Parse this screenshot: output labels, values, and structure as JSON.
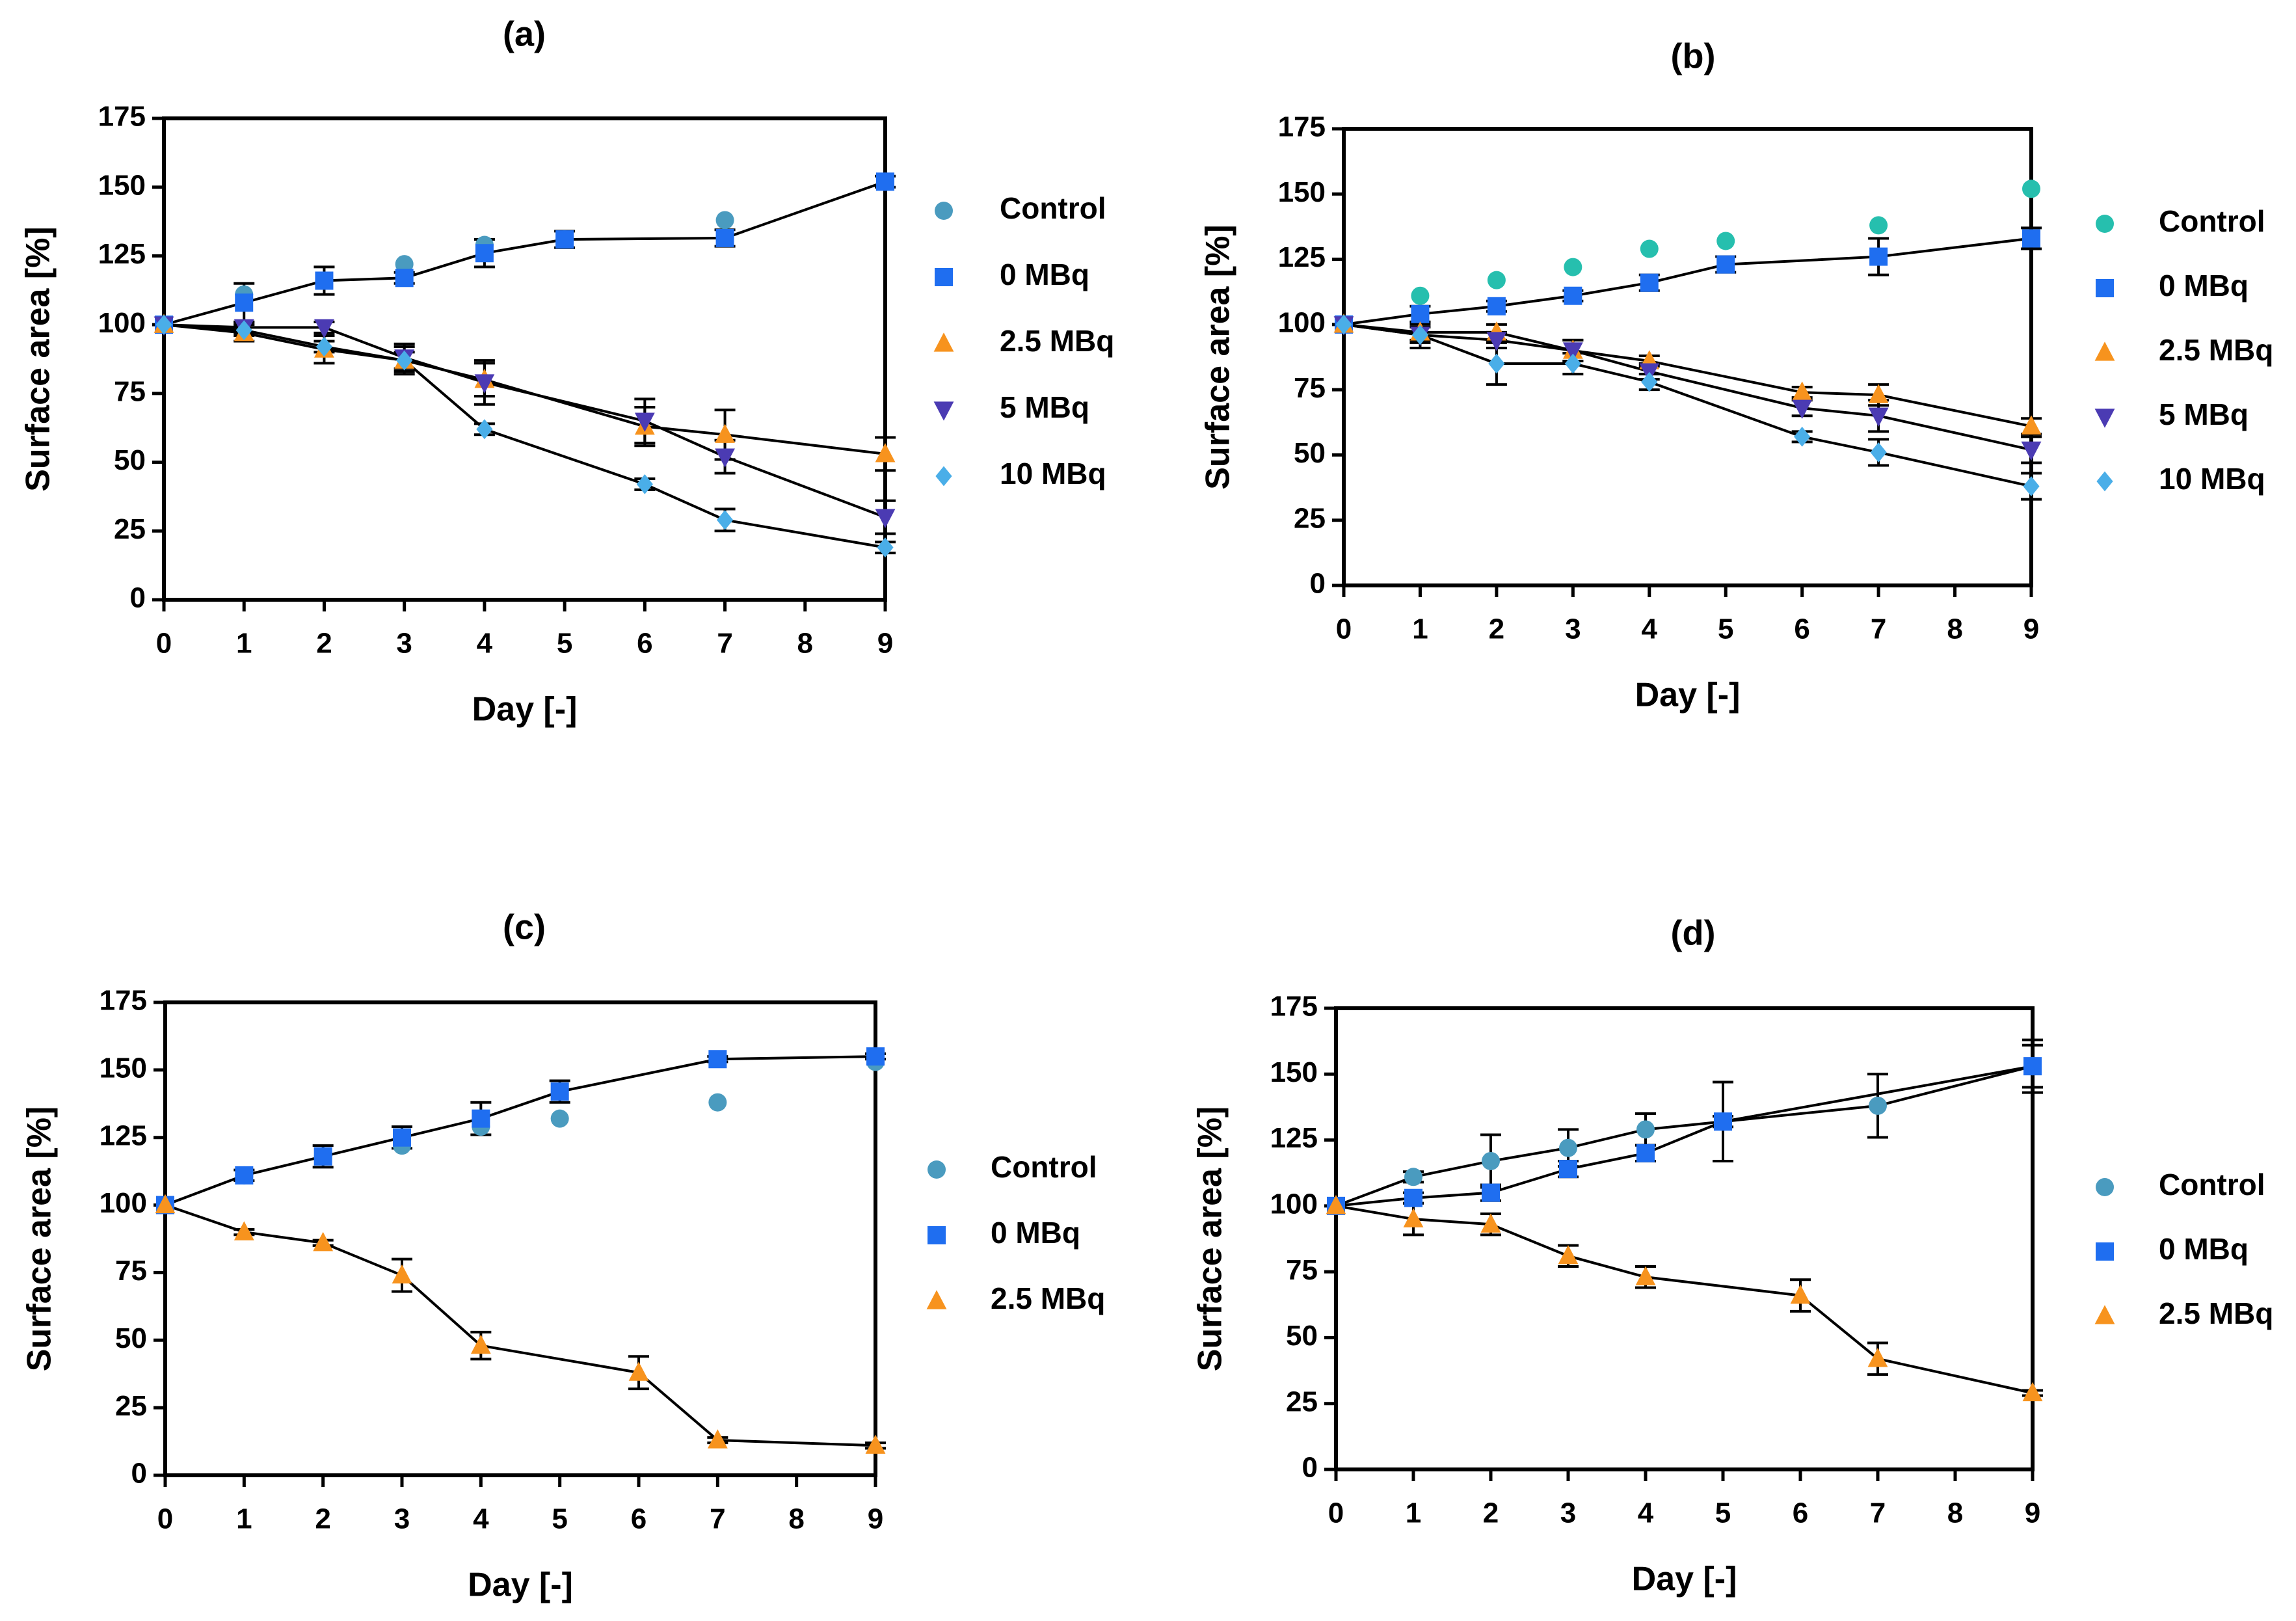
{
  "chart_data": [
    {
      "type": "line",
      "title": "(a)",
      "xlabel": "Day [-]",
      "ylabel": "Surface area [%]",
      "xlim": [
        0,
        9
      ],
      "xticks": [
        0,
        1,
        2,
        3,
        4,
        5,
        6,
        7,
        8,
        9
      ],
      "ylim": [
        0,
        175
      ],
      "yticks": [
        0,
        25,
        50,
        75,
        100,
        125,
        150,
        175
      ],
      "series": [
        {
          "name": "Control",
          "color": "#4a9bbf",
          "marker": "circle",
          "line": false,
          "x": [
            0,
            1,
            2,
            3,
            4,
            5,
            7,
            9
          ],
          "values": [
            100,
            111,
            116,
            122,
            129,
            131,
            138,
            152
          ],
          "errors": [
            null,
            null,
            null,
            null,
            null,
            null,
            null,
            null
          ]
        },
        {
          "name": "0 MBq",
          "color": "#1f6ef0",
          "marker": "square",
          "line": true,
          "x": [
            0,
            1,
            2,
            3,
            4,
            5,
            7,
            9
          ],
          "values": [
            100,
            108,
            116,
            117,
            126,
            131,
            131.5,
            152
          ],
          "errors": [
            null,
            7,
            5,
            2,
            5,
            3,
            3,
            2
          ]
        },
        {
          "name": "2.5 MBq",
          "color": "#f7931e",
          "marker": "triangle-up",
          "line": true,
          "x": [
            0,
            1,
            2,
            3,
            4,
            6,
            7,
            9
          ],
          "values": [
            100,
            97,
            91,
            87,
            80,
            63,
            60,
            53
          ],
          "errors": [
            null,
            3,
            5,
            5,
            6,
            7,
            9,
            6
          ]
        },
        {
          "name": "5 MBq",
          "color": "#4b3bb3",
          "marker": "triangle-down",
          "line": true,
          "x": [
            0,
            1,
            2,
            3,
            4,
            6,
            7,
            9
          ],
          "values": [
            100,
            99,
            99,
            88,
            79,
            65,
            52,
            30
          ],
          "errors": [
            null,
            2,
            2,
            5,
            8,
            8,
            6,
            6
          ]
        },
        {
          "name": "10 MBq",
          "color": "#4aaee8",
          "marker": "diamond",
          "line": true,
          "x": [
            0,
            1,
            2,
            3,
            4,
            6,
            7,
            9
          ],
          "values": [
            100,
            98,
            92,
            87,
            62,
            42,
            29,
            19
          ],
          "errors": [
            null,
            2,
            2,
            3,
            2,
            2,
            4,
            2
          ]
        }
      ]
    },
    {
      "type": "line",
      "title": "(b)",
      "xlabel": "Day [-]",
      "ylabel": "Surface area [%]",
      "xlim": [
        0,
        9
      ],
      "xticks": [
        0,
        1,
        2,
        3,
        4,
        5,
        6,
        7,
        8,
        9
      ],
      "ylim": [
        0,
        175
      ],
      "yticks": [
        0,
        25,
        50,
        75,
        100,
        125,
        150,
        175
      ],
      "series": [
        {
          "name": "Control",
          "color": "#26bfae",
          "marker": "circle",
          "line": false,
          "x": [
            0,
            1,
            2,
            3,
            4,
            5,
            7,
            9
          ],
          "values": [
            100,
            111,
            117,
            122,
            129,
            132,
            138,
            152
          ],
          "errors": [
            null,
            null,
            null,
            null,
            null,
            null,
            null,
            null
          ]
        },
        {
          "name": "0 MBq",
          "color": "#1f6ef0",
          "marker": "square",
          "line": true,
          "x": [
            0,
            1,
            2,
            3,
            4,
            5,
            7,
            9
          ],
          "values": [
            100,
            104,
            107,
            111,
            116,
            123,
            126,
            133
          ],
          "errors": [
            null,
            3,
            2,
            2,
            3,
            3,
            7,
            4
          ]
        },
        {
          "name": "2.5 MBq",
          "color": "#f7931e",
          "marker": "triangle-up",
          "line": true,
          "x": [
            0,
            1,
            2,
            3,
            4,
            6,
            7,
            9
          ],
          "values": [
            100,
            97,
            97,
            90,
            86,
            74,
            73,
            61
          ],
          "errors": [
            null,
            3,
            3,
            4,
            2,
            2,
            4,
            3
          ]
        },
        {
          "name": "5 MBq",
          "color": "#4b3bb3",
          "marker": "triangle-down",
          "line": true,
          "x": [
            0,
            1,
            2,
            3,
            4,
            6,
            7,
            9
          ],
          "values": [
            100,
            96,
            94,
            90,
            82,
            68,
            65,
            52
          ],
          "errors": [
            null,
            3,
            3,
            4,
            3,
            3,
            6,
            5
          ]
        },
        {
          "name": "10 MBq",
          "color": "#4aaee8",
          "marker": "diamond",
          "line": true,
          "x": [
            0,
            1,
            2,
            3,
            4,
            6,
            7,
            9
          ],
          "values": [
            100,
            96,
            85,
            85,
            78,
            57,
            51,
            38
          ],
          "errors": [
            null,
            5,
            8,
            4,
            3,
            2,
            5,
            5
          ]
        }
      ]
    },
    {
      "type": "line",
      "title": "(c)",
      "xlabel": "Day [-]",
      "ylabel": "Surface area [%]",
      "xlim": [
        0,
        9
      ],
      "xticks": [
        0,
        1,
        2,
        3,
        4,
        5,
        6,
        7,
        8,
        9
      ],
      "ylim": [
        0,
        175
      ],
      "yticks": [
        0,
        25,
        50,
        75,
        100,
        125,
        150,
        175
      ],
      "series": [
        {
          "name": "Control",
          "color": "#4a9bbf",
          "marker": "circle",
          "line": false,
          "x": [
            0,
            1,
            2,
            3,
            4,
            5,
            7,
            9
          ],
          "values": [
            100,
            111,
            118,
            122,
            129,
            132,
            138,
            153
          ],
          "errors": [
            null,
            null,
            null,
            null,
            null,
            null,
            null,
            null
          ]
        },
        {
          "name": "0 MBq",
          "color": "#1f6ef0",
          "marker": "square",
          "line": true,
          "x": [
            0,
            1,
            2,
            3,
            4,
            5,
            7,
            9
          ],
          "values": [
            100,
            111,
            118,
            125,
            132,
            142,
            154,
            155
          ],
          "errors": [
            null,
            2,
            4,
            4,
            6,
            4,
            1,
            1
          ]
        },
        {
          "name": "2.5 MBq",
          "color": "#f7931e",
          "marker": "triangle-up",
          "line": true,
          "x": [
            0,
            1,
            2,
            3,
            4,
            6,
            7,
            9
          ],
          "values": [
            100,
            90,
            86,
            74,
            48,
            38,
            13,
            11
          ],
          "errors": [
            null,
            1,
            1,
            6,
            5,
            6,
            1,
            1
          ]
        }
      ]
    },
    {
      "type": "line",
      "title": "(d)",
      "xlabel": "Day [-]",
      "ylabel": "Surface area [%]",
      "xlim": [
        0,
        9
      ],
      "xticks": [
        0,
        1,
        2,
        3,
        4,
        5,
        6,
        7,
        8,
        9
      ],
      "ylim": [
        0,
        175
      ],
      "yticks": [
        0,
        25,
        50,
        75,
        100,
        125,
        150,
        175
      ],
      "series": [
        {
          "name": "Control",
          "color": "#4a9bbf",
          "marker": "circle",
          "line": true,
          "x": [
            0,
            1,
            2,
            3,
            4,
            5,
            7,
            9
          ],
          "values": [
            100,
            111,
            117,
            122,
            129,
            132,
            138,
            153
          ],
          "errors": [
            null,
            2,
            10,
            7,
            6,
            15,
            12,
            10
          ]
        },
        {
          "name": "0 MBq",
          "color": "#1f6ef0",
          "marker": "square",
          "line": true,
          "x": [
            0,
            1,
            2,
            3,
            4,
            5,
            9
          ],
          "values": [
            100,
            103,
            105,
            114,
            120,
            132,
            153
          ],
          "errors": [
            null,
            2,
            3,
            3,
            3,
            2,
            8
          ]
        },
        {
          "name": "2.5 MBq",
          "color": "#f7931e",
          "marker": "triangle-up",
          "line": true,
          "x": [
            0,
            1,
            2,
            3,
            4,
            6,
            7,
            9
          ],
          "values": [
            100,
            95,
            93,
            81,
            73,
            66,
            42,
            29
          ],
          "errors": [
            null,
            6,
            4,
            4,
            4,
            6,
            6,
            1
          ]
        }
      ]
    }
  ]
}
